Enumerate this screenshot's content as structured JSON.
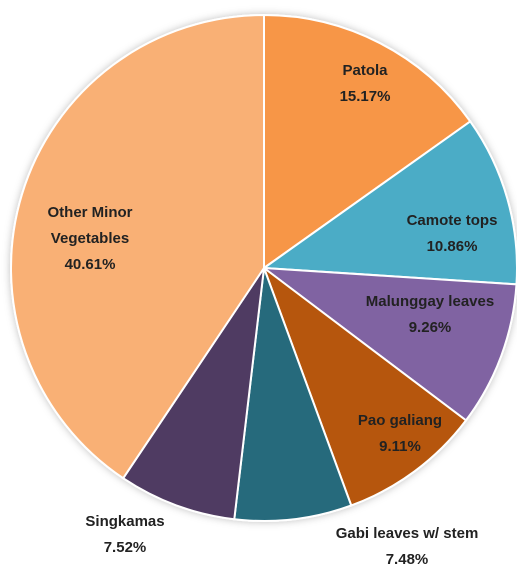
{
  "chart_data": {
    "type": "pie",
    "categories": [
      "Patola",
      "Camote tops",
      "Malunggay leaves",
      "Pao galiang",
      "Gabi leaves w/ stem",
      "Singkamas",
      "Other Minor Vegetables"
    ],
    "values": [
      15.17,
      10.86,
      9.26,
      9.11,
      7.48,
      7.52,
      40.61
    ],
    "value_labels": [
      "15.17%",
      "10.86%",
      "9.26%",
      "9.11%",
      "7.48%",
      "7.52%",
      "40.61%"
    ],
    "colors": [
      "#f79646",
      "#4bacc6",
      "#8064a2",
      "#b65708",
      "#276a7c",
      "#4f3b62",
      "#f9b074"
    ]
  }
}
